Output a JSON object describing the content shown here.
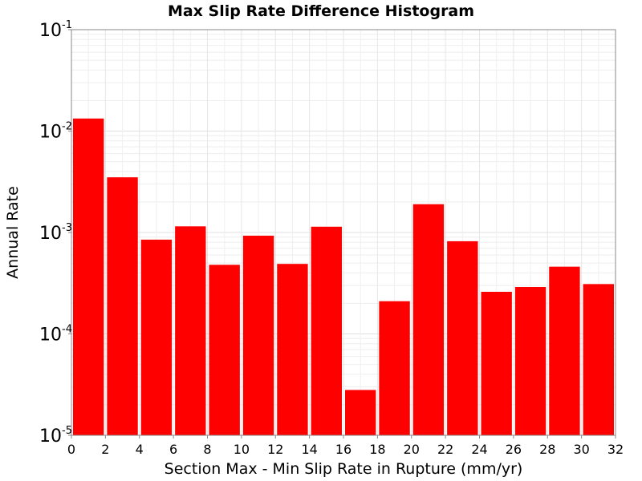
{
  "chart_data": {
    "type": "bar",
    "title": "Max Slip Rate Difference Histogram",
    "xlabel": "Section Max - Min Slip Rate in Rupture (mm/yr)",
    "ylabel": "Annual Rate",
    "y_scale": "log",
    "xlim": [
      0,
      32
    ],
    "ylim": [
      1e-05,
      0.1
    ],
    "x_ticks": [
      "0",
      "2",
      "4",
      "6",
      "8",
      "10",
      "12",
      "14",
      "16",
      "18",
      "20",
      "22",
      "24",
      "26",
      "28",
      "30",
      "32"
    ],
    "y_ticks": [
      {
        "base": "10",
        "exp": "-5"
      },
      {
        "base": "10",
        "exp": "-4"
      },
      {
        "base": "10",
        "exp": "-3"
      },
      {
        "base": "10",
        "exp": "-2"
      },
      {
        "base": "10",
        "exp": "-1"
      }
    ],
    "bin_width": 2,
    "bin_centers": [
      1,
      3,
      5,
      7,
      9,
      11,
      13,
      15,
      17,
      19,
      21,
      23,
      25,
      27,
      29,
      31
    ],
    "values": [
      0.0133,
      0.0035,
      0.00085,
      0.00115,
      0.00048,
      0.00093,
      0.00049,
      0.00114,
      2.8e-05,
      0.00021,
      0.0019,
      0.00082,
      0.00026,
      0.00029,
      0.00046,
      0.00031
    ],
    "bar_color": "#ff0000",
    "grid": true
  }
}
